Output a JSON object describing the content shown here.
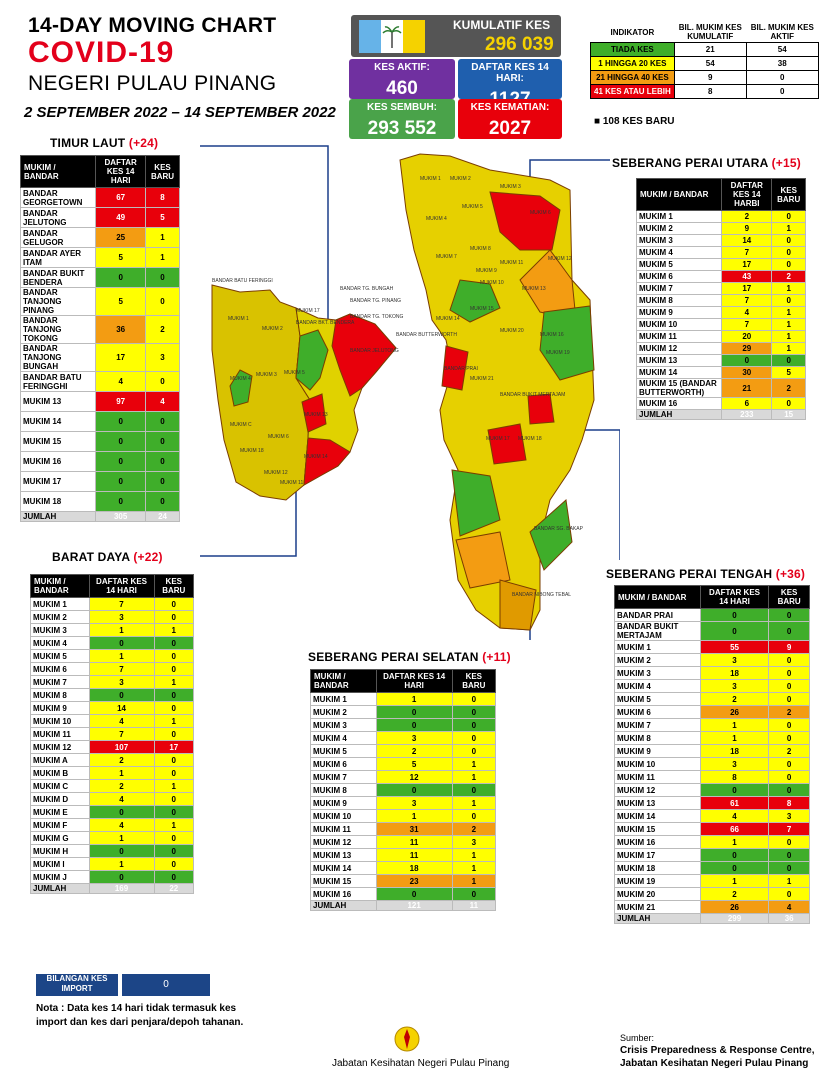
{
  "header": {
    "line1": "14-DAY MOVING CHART",
    "line2": "COVID-19",
    "line3": "NEGERI PULAU PINANG",
    "date_range": "2 SEPTEMBER 2022 – 14 SEPTEMBER 2022"
  },
  "summary": {
    "kumulatif_label": "KUMULATIF KES",
    "kumulatif_value": "296 039",
    "aktif_label": "KES AKTIF:",
    "aktif_value": "460",
    "daftar_label": "DAFTAR KES 14 HARI:",
    "daftar_value": "1127",
    "sembuh_label": "KES SEMBUH:",
    "sembuh_value": "293 552",
    "kematian_label": "KES KEMATIAN:",
    "kematian_value": "2027"
  },
  "legend": {
    "headers": [
      "INDIKATOR",
      "BIL. MUKIM KES KUMULATIF",
      "BIL. MUKIM KES AKTIF"
    ],
    "rows": [
      {
        "label": "TIADA KES",
        "kumulatif": "21",
        "aktif": "54",
        "color": "#3fae2a"
      },
      {
        "label": "1 HINGGA 20 KES",
        "kumulatif": "54",
        "aktif": "38",
        "color": "#ffff00"
      },
      {
        "label": "21 HINGGA 40 KES",
        "kumulatif": "9",
        "aktif": "0",
        "color": "#f39c12"
      },
      {
        "label": "41 KES ATAU LEBIH",
        "kumulatif": "8",
        "aktif": "0",
        "color": "#e8000b"
      }
    ],
    "new_cases": "108 KES BARU"
  },
  "districts": {
    "timur_laut": {
      "name": "TIMUR LAUT",
      "delta": "(+24)",
      "headers": [
        "MUKIM / BANDAR",
        "DAFTAR KES 14 HARI",
        "KES BARU"
      ],
      "rows": [
        [
          "BANDAR GEORGETOWN",
          "67",
          "8",
          "r",
          "r"
        ],
        [
          "BANDAR JELUTONG",
          "49",
          "5",
          "r",
          "r"
        ],
        [
          "BANDAR GELUGOR",
          "25",
          "1",
          "o",
          "y"
        ],
        [
          "BANDAR AYER ITAM",
          "5",
          "1",
          "y",
          "y"
        ],
        [
          "BANDAR BUKIT BENDERA",
          "0",
          "0",
          "g",
          "g"
        ],
        [
          "BANDAR TANJONG PINANG",
          "5",
          "0",
          "y",
          "y"
        ],
        [
          "BANDAR TANJONG TOKONG",
          "36",
          "2",
          "o",
          "y"
        ],
        [
          "BANDAR TANJONG BUNGAH",
          "17",
          "3",
          "y",
          "y"
        ],
        [
          "BANDAR BATU FERINGGHI",
          "4",
          "0",
          "y",
          "y"
        ],
        [
          "MUKIM 13",
          "97",
          "4",
          "r",
          "r"
        ],
        [
          "MUKIM 14",
          "0",
          "0",
          "g",
          "g"
        ],
        [
          "MUKIM 15",
          "0",
          "0",
          "g",
          "g"
        ],
        [
          "MUKIM 16",
          "0",
          "0",
          "g",
          "g"
        ],
        [
          "MUKIM 17",
          "0",
          "0",
          "g",
          "g"
        ],
        [
          "MUKIM 18",
          "0",
          "0",
          "g",
          "g"
        ]
      ],
      "total": [
        "JUMLAH",
        "305",
        "24"
      ]
    },
    "barat_daya": {
      "name": "BARAT DAYA",
      "delta": "(+22)",
      "headers": [
        "MUKIM / BANDAR",
        "DAFTAR KES 14 HARI",
        "KES BARU"
      ],
      "rows": [
        [
          "MUKIM 1",
          "7",
          "0",
          "y",
          "y"
        ],
        [
          "MUKIM 2",
          "3",
          "0",
          "y",
          "y"
        ],
        [
          "MUKIM 3",
          "1",
          "1",
          "y",
          "y"
        ],
        [
          "MUKIM 4",
          "0",
          "0",
          "g",
          "g"
        ],
        [
          "MUKIM 5",
          "1",
          "0",
          "y",
          "y"
        ],
        [
          "MUKIM 6",
          "7",
          "0",
          "y",
          "y"
        ],
        [
          "MUKIM 7",
          "3",
          "1",
          "y",
          "y"
        ],
        [
          "MUKIM 8",
          "0",
          "0",
          "g",
          "g"
        ],
        [
          "MUKIM 9",
          "14",
          "0",
          "y",
          "y"
        ],
        [
          "MUKIM 10",
          "4",
          "1",
          "y",
          "y"
        ],
        [
          "MUKIM 11",
          "7",
          "0",
          "y",
          "y"
        ],
        [
          "MUKIM 12",
          "107",
          "17",
          "r",
          "r"
        ],
        [
          "MUKIM A",
          "2",
          "0",
          "y",
          "y"
        ],
        [
          "MUKIM B",
          "1",
          "0",
          "y",
          "y"
        ],
        [
          "MUKIM C",
          "2",
          "1",
          "y",
          "y"
        ],
        [
          "MUKIM D",
          "4",
          "0",
          "y",
          "y"
        ],
        [
          "MUKIM E",
          "0",
          "0",
          "g",
          "g"
        ],
        [
          "MUKIM F",
          "4",
          "1",
          "y",
          "y"
        ],
        [
          "MUKIM G",
          "1",
          "0",
          "y",
          "y"
        ],
        [
          "MUKIM H",
          "0",
          "0",
          "g",
          "g"
        ],
        [
          "MUKIM I",
          "1",
          "0",
          "y",
          "y"
        ],
        [
          "MUKIM J",
          "0",
          "0",
          "g",
          "g"
        ]
      ],
      "total": [
        "JUMLAH",
        "169",
        "22"
      ]
    },
    "spu": {
      "name": "SEBERANG PERAI UTARA",
      "delta": "(+15)",
      "headers": [
        "MUKIM / BANDAR",
        "DAFTAR KES 14 HARBI",
        "KES BARU"
      ],
      "rows": [
        [
          "MUKIM 1",
          "2",
          "0",
          "y",
          "y"
        ],
        [
          "MUKIM 2",
          "9",
          "1",
          "y",
          "y"
        ],
        [
          "MUKIM 3",
          "14",
          "0",
          "y",
          "y"
        ],
        [
          "MUKIM 4",
          "7",
          "0",
          "y",
          "y"
        ],
        [
          "MUKIM 5",
          "17",
          "0",
          "y",
          "y"
        ],
        [
          "MUKIM 6",
          "43",
          "2",
          "r",
          "r"
        ],
        [
          "MUKIM 7",
          "17",
          "1",
          "y",
          "y"
        ],
        [
          "MUKIM 8",
          "7",
          "0",
          "y",
          "y"
        ],
        [
          "MUKIM 9",
          "4",
          "1",
          "y",
          "y"
        ],
        [
          "MUKIM 10",
          "7",
          "1",
          "y",
          "y"
        ],
        [
          "MUKIM 11",
          "20",
          "1",
          "y",
          "y"
        ],
        [
          "MUKIM 12",
          "29",
          "1",
          "o",
          "y"
        ],
        [
          "MUKIM 13",
          "0",
          "0",
          "g",
          "g"
        ],
        [
          "MUKIM 14",
          "30",
          "5",
          "o",
          "y"
        ],
        [
          "MUKIM 15 (BANDAR BUTTERWORTH)",
          "21",
          "2",
          "o",
          "o"
        ],
        [
          "MUKIM 16",
          "6",
          "0",
          "y",
          "y"
        ]
      ],
      "total": [
        "JUMLAH",
        "233",
        "15"
      ]
    },
    "spt": {
      "name": "SEBERANG PERAI TENGAH",
      "delta": "(+36)",
      "headers": [
        "MUKIM / BANDAR",
        "DAFTAR KES 14 HARI",
        "KES BARU"
      ],
      "rows": [
        [
          "BANDAR PRAI",
          "0",
          "0",
          "g",
          "g"
        ],
        [
          "BANDAR BUKIT MERTAJAM",
          "0",
          "0",
          "g",
          "g"
        ],
        [
          "MUKIM 1",
          "55",
          "9",
          "r",
          "r"
        ],
        [
          "MUKIM 2",
          "3",
          "0",
          "y",
          "y"
        ],
        [
          "MUKIM 3",
          "18",
          "0",
          "y",
          "y"
        ],
        [
          "MUKIM 4",
          "3",
          "0",
          "y",
          "y"
        ],
        [
          "MUKIM 5",
          "2",
          "0",
          "y",
          "y"
        ],
        [
          "MUKIM 6",
          "26",
          "2",
          "o",
          "o"
        ],
        [
          "MUKIM 7",
          "1",
          "0",
          "y",
          "y"
        ],
        [
          "MUKIM 8",
          "1",
          "0",
          "y",
          "y"
        ],
        [
          "MUKIM 9",
          "18",
          "2",
          "y",
          "y"
        ],
        [
          "MUKIM 10",
          "3",
          "0",
          "y",
          "y"
        ],
        [
          "MUKIM 11",
          "8",
          "0",
          "y",
          "y"
        ],
        [
          "MUKIM 12",
          "0",
          "0",
          "g",
          "g"
        ],
        [
          "MUKIM 13",
          "61",
          "8",
          "r",
          "r"
        ],
        [
          "MUKIM 14",
          "4",
          "3",
          "y",
          "y"
        ],
        [
          "MUKIM 15",
          "66",
          "7",
          "r",
          "r"
        ],
        [
          "MUKIM 16",
          "1",
          "0",
          "y",
          "y"
        ],
        [
          "MUKIM 17",
          "0",
          "0",
          "g",
          "g"
        ],
        [
          "MUKIM 18",
          "0",
          "0",
          "g",
          "g"
        ],
        [
          "MUKIM 19",
          "1",
          "1",
          "y",
          "y"
        ],
        [
          "MUKIM 20",
          "2",
          "0",
          "y",
          "y"
        ],
        [
          "MUKIM 21",
          "26",
          "4",
          "o",
          "o"
        ]
      ],
      "total": [
        "JUMLAH",
        "299",
        "36"
      ]
    },
    "sps": {
      "name": "SEBERANG PERAI SELATAN",
      "delta": "(+11)",
      "headers": [
        "MUKIM / BANDAR",
        "DAFTAR KES 14 HARI",
        "KES BARU"
      ],
      "rows": [
        [
          "MUKIM 1",
          "1",
          "0",
          "y",
          "y"
        ],
        [
          "MUKIM 2",
          "0",
          "0",
          "g",
          "g"
        ],
        [
          "MUKIM 3",
          "0",
          "0",
          "g",
          "g"
        ],
        [
          "MUKIM 4",
          "3",
          "0",
          "y",
          "y"
        ],
        [
          "MUKIM 5",
          "2",
          "0",
          "y",
          "y"
        ],
        [
          "MUKIM 6",
          "5",
          "1",
          "y",
          "y"
        ],
        [
          "MUKIM 7",
          "12",
          "1",
          "y",
          "y"
        ],
        [
          "MUKIM 8",
          "0",
          "0",
          "g",
          "g"
        ],
        [
          "MUKIM 9",
          "3",
          "1",
          "y",
          "y"
        ],
        [
          "MUKIM 10",
          "1",
          "0",
          "y",
          "y"
        ],
        [
          "MUKIM 11",
          "31",
          "2",
          "o",
          "o"
        ],
        [
          "MUKIM 12",
          "11",
          "3",
          "y",
          "y"
        ],
        [
          "MUKIM 13",
          "11",
          "1",
          "y",
          "y"
        ],
        [
          "MUKIM 14",
          "18",
          "1",
          "y",
          "y"
        ],
        [
          "MUKIM 15",
          "23",
          "1",
          "o",
          "o"
        ],
        [
          "MUKIM 16",
          "0",
          "0",
          "g",
          "g"
        ]
      ],
      "total": [
        "JUMLAH",
        "121",
        "11"
      ]
    }
  },
  "map_labels": {
    "island": [
      "BANDAR BATU FERINGGI",
      "BANDAR TG. BUNGAH",
      "BANDAR TG. PINANG",
      "BANDAR TG. TOKONG",
      "BANDAR BKT. BENDERA",
      "BANDAR JELUTONG",
      "MUKIM 17",
      "MUKIM 1",
      "MUKIM 2",
      "MUKIM 3",
      "MUKIM 4",
      "MUKIM 5",
      "MUKIM 6",
      "MUKIM 11",
      "MUKIM 12",
      "MUKIM C",
      "MUKIM 13",
      "MUKIM 18",
      "MUKIM 14"
    ],
    "mainland": [
      "MUKIM 1",
      "MUKIM 2",
      "MUKIM 3",
      "MUKIM 4",
      "MUKIM 5",
      "MUKIM 6",
      "MUKIM 7",
      "MUKIM 8",
      "MUKIM 9",
      "MUKIM 10",
      "MUKIM 11",
      "MUKIM 12",
      "MUKIM 13",
      "MUKIM 14",
      "MUKIM 15",
      "MUKIM 16",
      "MUKIM 17",
      "MUKIM 18",
      "MUKIM 19",
      "MUKIM 20",
      "MUKIM 21",
      "BANDAR BUTTERWORTH",
      "BANDAR PRAI",
      "BANDAR BUKIT MERTAJAM",
      "BANDAR SG. BAKAP",
      "BANDAR NIBONG TEBAL"
    ]
  },
  "import": {
    "label": "BILANGAN KES IMPORT",
    "value": "0"
  },
  "note": "Nota : Data kes 14 hari tidak termasuk kes import dan kes dari penjara/depoh tahanan.",
  "footer": {
    "org": "Jabatan Kesihatan Negeri Pulau Pinang",
    "source_label": "Sumber:",
    "source_line1": "Crisis Preparedness & Response Centre,",
    "source_line2": "Jabatan Kesihatan Negeri Pulau Pinang"
  }
}
